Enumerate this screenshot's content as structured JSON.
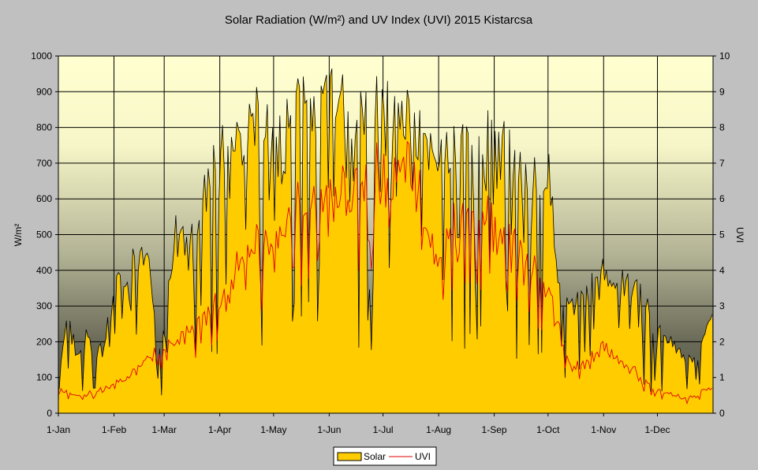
{
  "chart_data": {
    "type": "area",
    "title": "Solar Radiation (W/m²) and UV Index (UVI) 2015 Kistarcsa",
    "ylabel": "W/m²",
    "y2label": "UVI",
    "ylim": [
      0,
      1000
    ],
    "y2lim": [
      0,
      10
    ],
    "yticks": [
      "0",
      "100",
      "200",
      "300",
      "400",
      "500",
      "600",
      "700",
      "800",
      "900",
      "1000"
    ],
    "y2ticks": [
      "0",
      "1",
      "2",
      "3",
      "4",
      "5",
      "6",
      "7",
      "8",
      "9",
      "10"
    ],
    "xticks": [
      "1-Jan",
      "1-Feb",
      "1-Mar",
      "1-Apr",
      "1-May",
      "1-Jun",
      "1-Jul",
      "1-Aug",
      "1-Sep",
      "1-Oct",
      "1-Nov",
      "1-Dec"
    ],
    "xtick_days": [
      0,
      31,
      59,
      90,
      120,
      151,
      181,
      212,
      243,
      273,
      304,
      334
    ],
    "days": 365,
    "grid": true,
    "legend_position": "bottom-center",
    "legend": [
      "Solar",
      "UVI"
    ],
    "colors": {
      "solar_fill": "#ffcc00",
      "solar_line": "#000000",
      "uvi_line": "#e00000"
    },
    "series": [
      {
        "name": "Solar",
        "x": [
          0,
          5,
          10,
          15,
          20,
          25,
          31,
          40,
          50,
          55,
          59,
          65,
          75,
          85,
          90,
          100,
          110,
          120,
          130,
          140,
          151,
          160,
          170,
          181,
          190,
          200,
          212,
          220,
          230,
          243,
          250,
          260,
          273,
          280,
          290,
          304,
          315,
          325,
          334,
          345,
          355,
          364
        ],
        "values": [
          100,
          300,
          180,
          240,
          150,
          220,
          360,
          440,
          450,
          150,
          300,
          560,
          560,
          700,
          800,
          780,
          870,
          820,
          900,
          900,
          930,
          900,
          860,
          930,
          900,
          820,
          770,
          800,
          760,
          880,
          800,
          700,
          700,
          300,
          330,
          420,
          380,
          350,
          250,
          180,
          150,
          300
        ]
      },
      {
        "name": "UVI",
        "x": [
          0,
          15,
          31,
          45,
          59,
          75,
          90,
          105,
          120,
          135,
          151,
          165,
          181,
          195,
          212,
          225,
          243,
          255,
          273,
          285,
          304,
          320,
          334,
          350,
          364
        ],
        "values": [
          0.6,
          0.5,
          0.8,
          1.3,
          1.8,
          2.4,
          3.2,
          4.3,
          4.9,
          5.6,
          6.0,
          6.3,
          6.6,
          6.8,
          4.0,
          5.8,
          5.2,
          4.6,
          3.2,
          1.2,
          1.8,
          1.2,
          0.6,
          0.4,
          0.7
        ]
      }
    ]
  }
}
